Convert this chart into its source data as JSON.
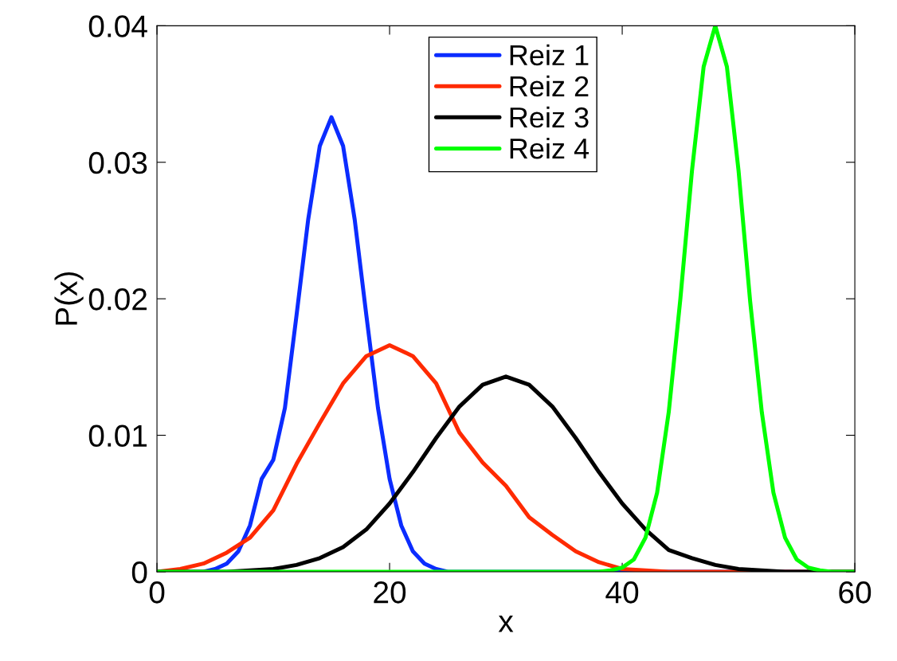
{
  "chart_data": {
    "type": "line",
    "xlabel": "x",
    "ylabel": "P(x)",
    "xlim": [
      0,
      60
    ],
    "ylim": [
      0,
      0.04
    ],
    "xticks": [
      0,
      20,
      40,
      60
    ],
    "yticks": [
      0,
      0.01,
      0.02,
      0.03,
      0.04
    ],
    "legend": "top",
    "grid": false,
    "marker": "none",
    "line_style": "solid",
    "series": [
      {
        "name": "Reiz 1",
        "color": "#0b2cff",
        "x": [
          0,
          4,
          5,
          6,
          7,
          8,
          9,
          10,
          11,
          12,
          13,
          14,
          15,
          16,
          17,
          18,
          19,
          20,
          21,
          22,
          23,
          24,
          25,
          26,
          60
        ],
        "values": [
          0,
          0,
          0.0002,
          0.0006,
          0.0015,
          0.0034,
          0.0068,
          0.0082,
          0.012,
          0.0188,
          0.0258,
          0.0312,
          0.0333,
          0.0312,
          0.0258,
          0.0188,
          0.012,
          0.0068,
          0.0034,
          0.0015,
          0.0006,
          0.0002,
          0,
          0,
          0
        ]
      },
      {
        "name": "Reiz 2",
        "color": "#ff2a00",
        "x": [
          0,
          2,
          4,
          6,
          8,
          10,
          12,
          14,
          16,
          18,
          20,
          22,
          24,
          26,
          28,
          30,
          32,
          34,
          36,
          38,
          40,
          42,
          44,
          60
        ],
        "values": [
          0,
          0.0002,
          0.0006,
          0.0014,
          0.0025,
          0.0045,
          0.0079,
          0.0109,
          0.0138,
          0.0158,
          0.0166,
          0.0158,
          0.0138,
          0.0102,
          0.008,
          0.0063,
          0.004,
          0.0027,
          0.0015,
          0.0007,
          0.0002,
          0.0001,
          0,
          0
        ]
      },
      {
        "name": "Reiz 3",
        "color": "#000000",
        "x": [
          0,
          6,
          8,
          10,
          12,
          14,
          16,
          18,
          20,
          22,
          24,
          26,
          28,
          30,
          32,
          34,
          36,
          38,
          40,
          42,
          44,
          46,
          48,
          50,
          52,
          54,
          60
        ],
        "values": [
          0,
          0,
          0.0001,
          0.0002,
          0.0005,
          0.001,
          0.0018,
          0.0031,
          0.005,
          0.0073,
          0.0098,
          0.0121,
          0.0137,
          0.0143,
          0.0137,
          0.0121,
          0.0098,
          0.0073,
          0.005,
          0.0031,
          0.0016,
          0.001,
          0.0005,
          0.0002,
          0.0001,
          0,
          0
        ]
      },
      {
        "name": "Reiz 4",
        "color": "#00ff00",
        "x": [
          0,
          38,
          39,
          40,
          41,
          42,
          43,
          44,
          45,
          46,
          47,
          48,
          49,
          50,
          51,
          52,
          53,
          54,
          55,
          56,
          57,
          58,
          60
        ],
        "values": [
          0,
          0,
          0.0001,
          0.0003,
          0.0009,
          0.0025,
          0.0058,
          0.0117,
          0.02,
          0.0294,
          0.037,
          0.04,
          0.037,
          0.0294,
          0.0198,
          0.0117,
          0.0058,
          0.0025,
          0.0009,
          0.0003,
          0.0001,
          0,
          0
        ]
      }
    ]
  }
}
